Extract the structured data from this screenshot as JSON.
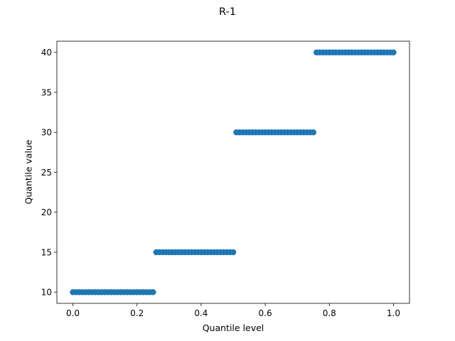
{
  "chart_data": {
    "type": "scatter",
    "title": "R-1",
    "xlabel": "Quantile level",
    "ylabel": "Quantile value",
    "xlim": [
      -0.05,
      1.05
    ],
    "ylim": [
      8.6,
      41.4
    ],
    "x_ticks": [
      0.0,
      0.2,
      0.4,
      0.6,
      0.8,
      1.0
    ],
    "x_tick_labels": [
      "0.0",
      "0.2",
      "0.4",
      "0.6",
      "0.8",
      "1.0"
    ],
    "y_ticks": [
      10,
      15,
      20,
      25,
      30,
      35,
      40
    ],
    "y_tick_labels": [
      "10",
      "15",
      "20",
      "25",
      "30",
      "35",
      "40"
    ],
    "grid": false,
    "series": [
      {
        "color": "#1f77b4",
        "steps": [
          {
            "x_start": 0.0,
            "x_end": 0.25,
            "y": 10
          },
          {
            "x_start": 0.26,
            "x_end": 0.5,
            "y": 15
          },
          {
            "x_start": 0.51,
            "x_end": 0.75,
            "y": 30
          },
          {
            "x_start": 0.76,
            "x_end": 1.0,
            "y": 40
          }
        ],
        "x_step": 0.01
      }
    ]
  }
}
